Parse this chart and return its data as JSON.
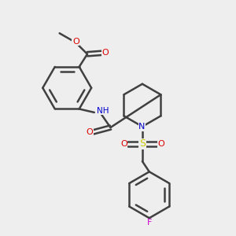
{
  "bg_color": "#eeeeee",
  "atom_colors": {
    "C": "#404040",
    "N": "#0000cc",
    "O": "#dd0000",
    "S": "#cccc00",
    "F": "#cc00cc",
    "H": "#808080"
  },
  "line_color": "#404040",
  "line_width": 1.8,
  "figsize": [
    3.0,
    3.0
  ],
  "dpi": 100
}
